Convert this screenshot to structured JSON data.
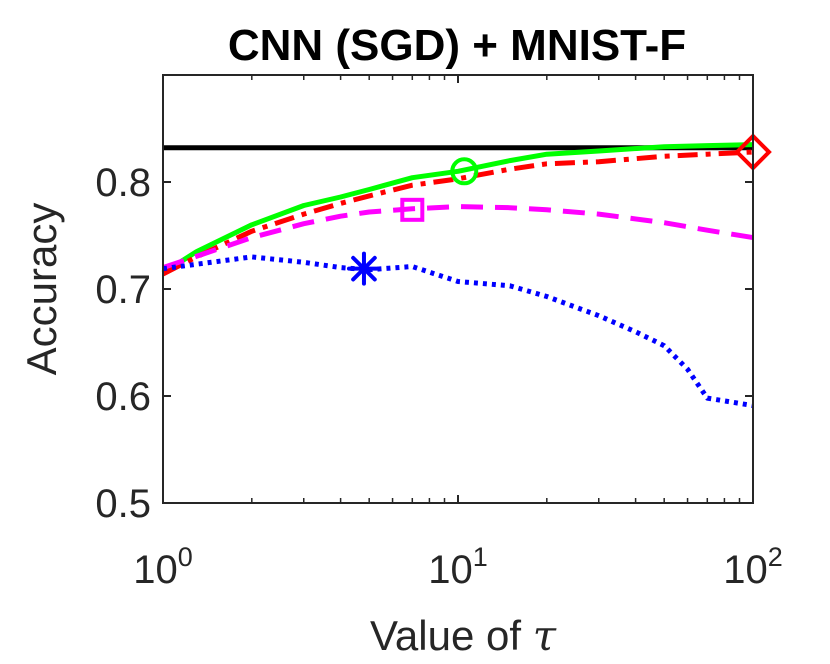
{
  "chart_data": {
    "type": "line",
    "title": "CNN (SGD) + MNIST-F",
    "xlabel": "Value of",
    "xlabel_symbol": "τ",
    "ylabel": "Accuracy",
    "xscale": "log",
    "xlim": [
      1,
      100
    ],
    "ylim": [
      0.5,
      0.9
    ],
    "xticks": [
      {
        "value": 1,
        "base": "10",
        "exp": "0"
      },
      {
        "value": 10,
        "base": "10",
        "exp": "1"
      },
      {
        "value": 100,
        "base": "10",
        "exp": "2"
      }
    ],
    "yticks": [
      {
        "value": 0.5,
        "label": "0.5"
      },
      {
        "value": 0.6,
        "label": "0.6"
      },
      {
        "value": 0.7,
        "label": "0.7"
      },
      {
        "value": 0.8,
        "label": "0.8"
      }
    ],
    "grid": false,
    "series": [
      {
        "name": "baseline",
        "color": "#000000",
        "style": "solid",
        "x": [
          1,
          100
        ],
        "y": [
          0.832,
          0.832
        ]
      },
      {
        "name": "green-solid",
        "color": "#00ff00",
        "style": "solid",
        "x": [
          1,
          1.3,
          2,
          3,
          4,
          5,
          7,
          10,
          15,
          20,
          30,
          50,
          70,
          100
        ],
        "y": [
          0.715,
          0.735,
          0.76,
          0.778,
          0.786,
          0.793,
          0.804,
          0.81,
          0.82,
          0.826,
          0.829,
          0.833,
          0.834,
          0.835
        ],
        "marker": {
          "shape": "circle",
          "x": 10.5,
          "y": 0.81
        }
      },
      {
        "name": "red-dashdot",
        "color": "#ff0000",
        "style": "dashdot",
        "x": [
          1,
          1.3,
          2,
          3,
          4,
          5,
          7,
          10,
          15,
          20,
          30,
          50,
          70,
          100
        ],
        "y": [
          0.714,
          0.73,
          0.754,
          0.77,
          0.78,
          0.787,
          0.797,
          0.803,
          0.812,
          0.817,
          0.819,
          0.824,
          0.826,
          0.828
        ],
        "marker": {
          "shape": "diamond",
          "x": 100,
          "y": 0.828
        }
      },
      {
        "name": "magenta-dashed",
        "color": "#ff00ff",
        "style": "dashed",
        "x": [
          1,
          2,
          3,
          4,
          5,
          7,
          10,
          15,
          20,
          30,
          50,
          70,
          100
        ],
        "y": [
          0.72,
          0.748,
          0.761,
          0.768,
          0.772,
          0.775,
          0.777,
          0.776,
          0.774,
          0.77,
          0.762,
          0.755,
          0.748
        ],
        "marker": {
          "shape": "square",
          "x": 7,
          "y": 0.774
        }
      },
      {
        "name": "blue-dotted",
        "color": "#0000ff",
        "style": "dotted",
        "x": [
          1,
          2,
          3,
          4,
          5,
          7,
          10,
          15,
          20,
          30,
          40,
          50,
          60,
          70,
          100
        ],
        "y": [
          0.719,
          0.73,
          0.725,
          0.72,
          0.718,
          0.721,
          0.707,
          0.703,
          0.693,
          0.675,
          0.66,
          0.647,
          0.625,
          0.598,
          0.591
        ],
        "marker": {
          "shape": "asterisk",
          "x": 4.8,
          "y": 0.719
        }
      }
    ]
  }
}
